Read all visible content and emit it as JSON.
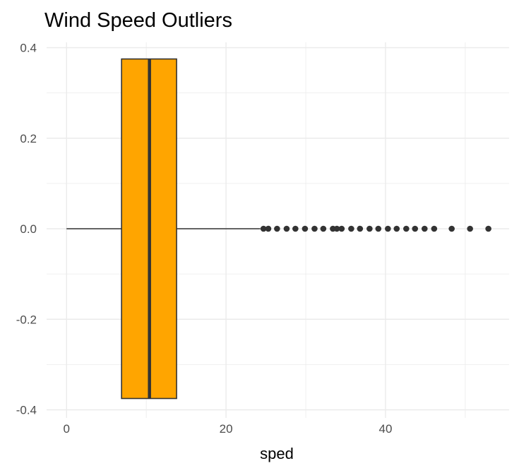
{
  "chart_data": {
    "type": "boxplot",
    "title": "Wind Speed Outliers",
    "xlabel": "sped",
    "ylabel": "",
    "xlim": [
      -2.5,
      55.5
    ],
    "ylim": [
      -0.4,
      0.4
    ],
    "x_ticks": [
      0,
      20,
      40
    ],
    "x_tick_labels": [
      "0",
      "20",
      "40"
    ],
    "y_ticks": [
      0.4,
      0.2,
      0.0,
      -0.2,
      -0.4
    ],
    "y_tick_labels": [
      "0.4",
      "0.2",
      "0.0",
      "-0.2",
      "-0.4"
    ],
    "grid": true,
    "box": {
      "min": 0,
      "q1": 6.9,
      "median": 10.4,
      "q3": 13.8,
      "whisker_high": 24.3,
      "box_y_range": [
        -0.375,
        0.375
      ],
      "fill": "#FFA500",
      "outline": "#333333"
    },
    "outliers": [
      24.7,
      25.3,
      26.4,
      27.6,
      28.7,
      29.9,
      31.1,
      32.2,
      33.4,
      33.9,
      34.5,
      35.7,
      36.8,
      38.0,
      39.1,
      40.3,
      41.4,
      42.6,
      43.7,
      44.9,
      46.1,
      48.3,
      50.6,
      52.9
    ],
    "colors": {
      "grid": "#EBEBEB",
      "line": "#333333",
      "text": "#4D4D4D"
    }
  }
}
